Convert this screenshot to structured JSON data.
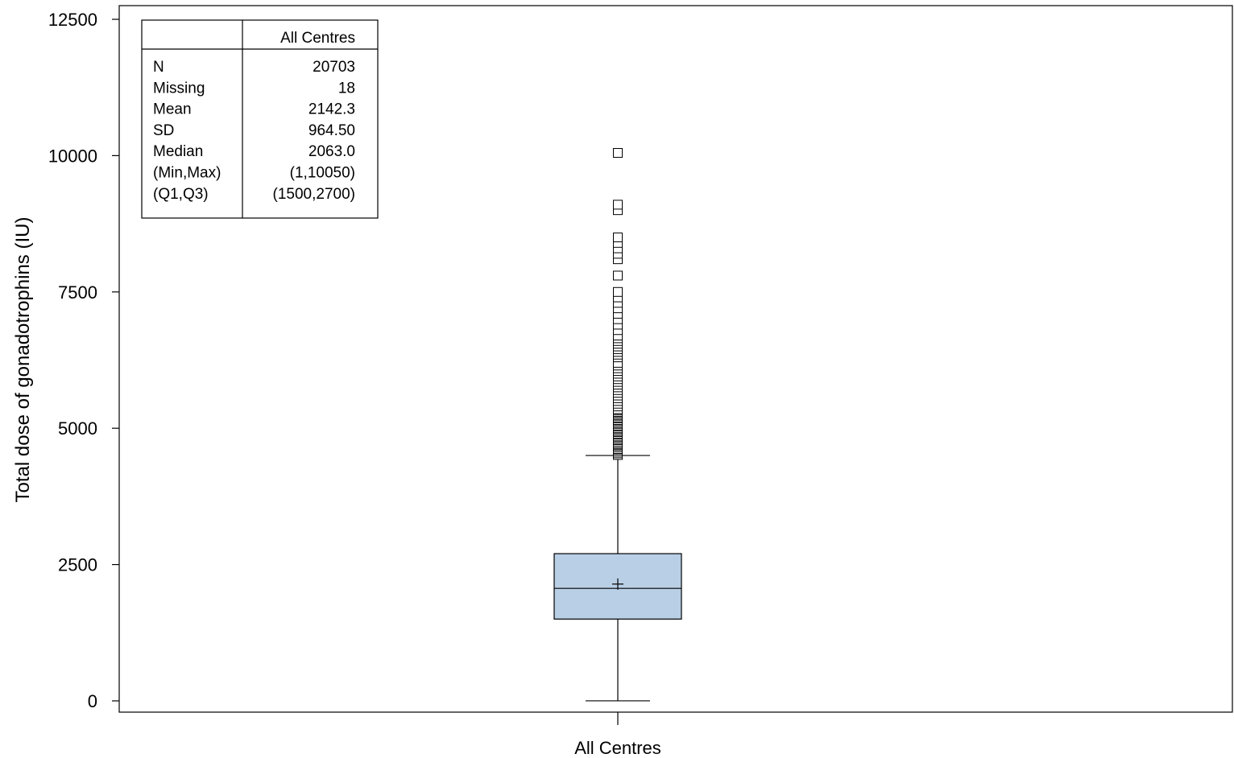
{
  "chart_data": {
    "type": "box",
    "title": "",
    "ylabel": "Total dose of gonadotrophins (IU)",
    "xlabel": "",
    "ylim": [
      -200,
      12700
    ],
    "yticks": [
      0,
      2500,
      5000,
      7500,
      10000,
      12500
    ],
    "ytick_labels": [
      "0",
      "2500",
      "5000",
      "7500",
      "10000",
      "12500"
    ],
    "categories": [
      "All Centres"
    ],
    "grid": false,
    "legend": "none",
    "box_fill": "#b9cfe6",
    "boxes": [
      {
        "category": "All Centres",
        "min": 1,
        "whisker_low": 1,
        "q1": 1500,
        "median": 2063,
        "mean": 2142.3,
        "q3": 2700,
        "whisker_high": 4500,
        "max": 10050,
        "outliers": [
          4510,
          4540,
          4570,
          4600,
          4620,
          4650,
          4680,
          4700,
          4720,
          4750,
          4780,
          4800,
          4830,
          4850,
          4880,
          4900,
          4930,
          4950,
          4980,
          5000,
          5030,
          5050,
          5080,
          5100,
          5130,
          5150,
          5180,
          5200,
          5230,
          5250,
          5280,
          5300,
          5330,
          5350,
          5400,
          5450,
          5500,
          5550,
          5600,
          5650,
          5700,
          5750,
          5800,
          5850,
          5900,
          5950,
          6000,
          6050,
          6100,
          6150,
          6200,
          6300,
          6350,
          6400,
          6450,
          6500,
          6550,
          6600,
          6650,
          6700,
          6800,
          6900,
          7000,
          7100,
          7200,
          7300,
          7400,
          7500,
          7800,
          8100,
          8200,
          8300,
          8400,
          8500,
          9000,
          9100,
          10050
        ]
      }
    ],
    "stats_table": {
      "header": [
        "",
        "All Centres"
      ],
      "rows": [
        {
          "label": "N",
          "value": "20703"
        },
        {
          "label": "Missing",
          "value": "18"
        },
        {
          "label": "Mean",
          "value": "2142.3"
        },
        {
          "label": "SD",
          "value": "964.50"
        },
        {
          "label": "Median",
          "value": "2063.0"
        },
        {
          "label": "(Min,Max)",
          "value": "(1,10050)"
        },
        {
          "label": "(Q1,Q3)",
          "value": "(1500,2700)"
        }
      ],
      "placement": "top-left"
    }
  }
}
